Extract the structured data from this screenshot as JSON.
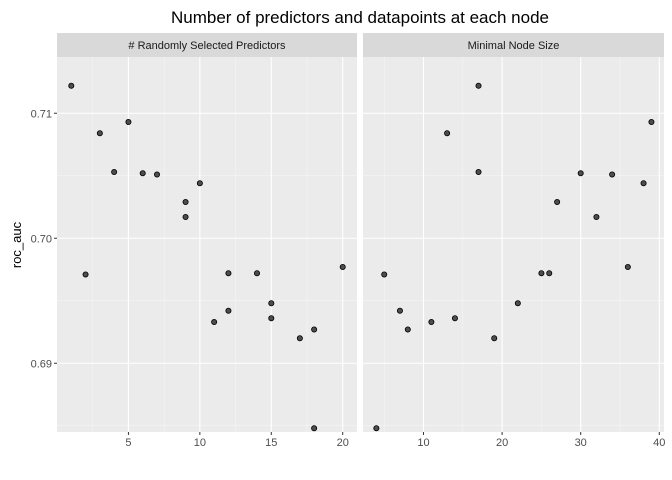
{
  "chart_data": {
    "type": "scatter",
    "title": "Number of predictors and datapoints at each node",
    "ylabel": "roc_auc",
    "ylim": [
      0.6845,
      0.7145
    ],
    "y_ticks": [
      0.69,
      0.7,
      0.71
    ],
    "y_tick_labels": [
      "0.69",
      "0.70",
      "0.71"
    ],
    "grid": true,
    "panels": [
      {
        "strip": "# Randomly Selected Predictors",
        "xlim": [
          0,
          21
        ],
        "x_ticks": [
          5,
          10,
          15,
          20
        ],
        "x_tick_labels": [
          "5",
          "10",
          "15",
          "20"
        ],
        "points": [
          {
            "x": 1,
            "y": 0.7122
          },
          {
            "x": 2,
            "y": 0.6971
          },
          {
            "x": 3,
            "y": 0.7084
          },
          {
            "x": 4,
            "y": 0.7053
          },
          {
            "x": 5,
            "y": 0.7093
          },
          {
            "x": 6,
            "y": 0.7052
          },
          {
            "x": 7,
            "y": 0.7051
          },
          {
            "x": 9,
            "y": 0.7029
          },
          {
            "x": 9,
            "y": 0.7017
          },
          {
            "x": 10,
            "y": 0.7044
          },
          {
            "x": 11,
            "y": 0.6933
          },
          {
            "x": 12,
            "y": 0.6972
          },
          {
            "x": 12,
            "y": 0.6942
          },
          {
            "x": 14,
            "y": 0.6972
          },
          {
            "x": 15,
            "y": 0.6948
          },
          {
            "x": 15,
            "y": 0.6936
          },
          {
            "x": 17,
            "y": 0.692
          },
          {
            "x": 18,
            "y": 0.6927
          },
          {
            "x": 18,
            "y": 0.6848
          },
          {
            "x": 20,
            "y": 0.6977
          }
        ]
      },
      {
        "strip": "Minimal Node Size",
        "xlim": [
          2.3,
          40.6
        ],
        "x_ticks": [
          10,
          20,
          30,
          40
        ],
        "x_tick_labels": [
          "10",
          "20",
          "30",
          "40"
        ],
        "points": [
          {
            "x": 4,
            "y": 0.6848
          },
          {
            "x": 5,
            "y": 0.6971
          },
          {
            "x": 7,
            "y": 0.6942
          },
          {
            "x": 8,
            "y": 0.6927
          },
          {
            "x": 11,
            "y": 0.6933
          },
          {
            "x": 13,
            "y": 0.7084
          },
          {
            "x": 14,
            "y": 0.6936
          },
          {
            "x": 17,
            "y": 0.7122
          },
          {
            "x": 17,
            "y": 0.7053
          },
          {
            "x": 19,
            "y": 0.692
          },
          {
            "x": 22,
            "y": 0.6948
          },
          {
            "x": 25,
            "y": 0.6972
          },
          {
            "x": 26,
            "y": 0.6972
          },
          {
            "x": 27,
            "y": 0.7029
          },
          {
            "x": 30,
            "y": 0.7052
          },
          {
            "x": 32,
            "y": 0.7017
          },
          {
            "x": 34,
            "y": 0.7051
          },
          {
            "x": 36,
            "y": 0.6977
          },
          {
            "x": 38,
            "y": 0.7044
          },
          {
            "x": 39,
            "y": 0.7093
          }
        ]
      }
    ]
  },
  "colors": {
    "panel_background": "#ebebeb",
    "strip_background": "#d9d9d9",
    "grid_major": "#ffffff",
    "point_fill": "#4d4d4d",
    "point_stroke": "#000000"
  }
}
